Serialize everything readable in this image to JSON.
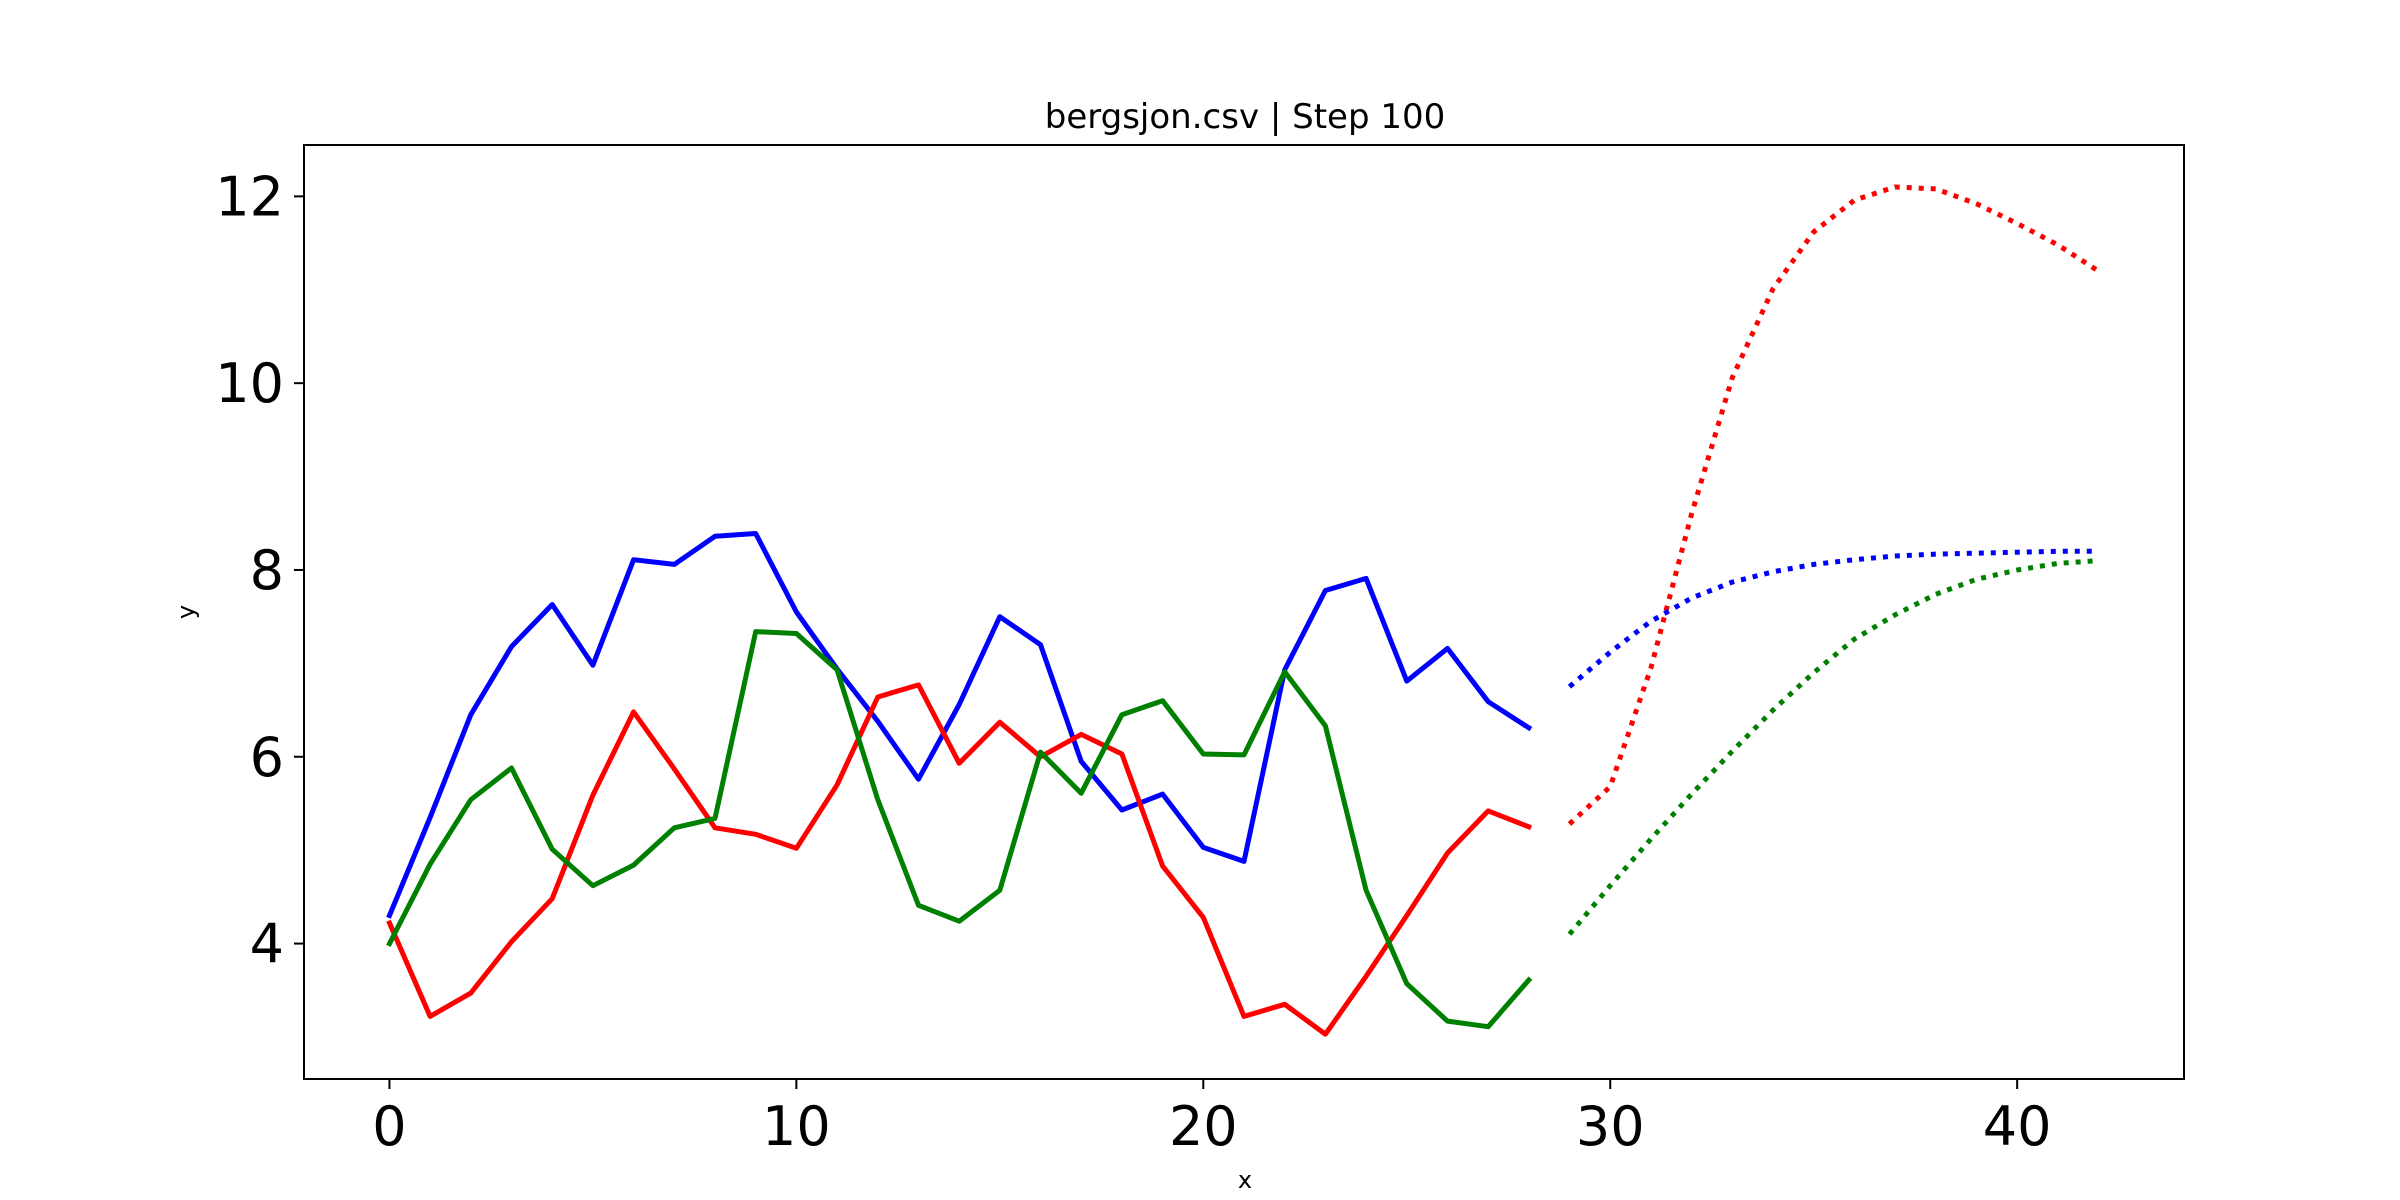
{
  "chart_data": {
    "type": "line",
    "title": "bergsjon.csv | Step 100",
    "xlabel": "x",
    "ylabel": "y",
    "xlim": [
      -2.1,
      44.1
    ],
    "ylim": [
      2.55,
      12.55
    ],
    "x_ticks": [
      0,
      10,
      20,
      30,
      40
    ],
    "y_ticks": [
      4,
      6,
      8,
      10,
      12
    ],
    "grid": false,
    "legend": "none",
    "series": [
      {
        "color": "#0000ff",
        "style": "solid",
        "x": [
          0,
          1,
          2,
          3,
          4,
          5,
          6,
          7,
          8,
          9,
          10,
          11,
          12,
          13,
          14,
          15,
          16,
          17,
          18,
          19,
          20,
          21,
          22,
          23,
          24,
          25,
          26,
          27,
          28
        ],
        "values": [
          4.3,
          5.35,
          6.45,
          7.18,
          7.63,
          6.98,
          8.11,
          8.06,
          8.36,
          8.39,
          7.55,
          6.94,
          6.38,
          5.76,
          6.56,
          7.5,
          7.2,
          5.95,
          5.43,
          5.6,
          5.03,
          4.88,
          6.93,
          7.78,
          7.91,
          6.81,
          7.16,
          6.59,
          6.31
        ]
      },
      {
        "color": "#ff0000",
        "style": "solid",
        "x": [
          0,
          1,
          2,
          3,
          4,
          5,
          6,
          7,
          8,
          9,
          10,
          11,
          12,
          13,
          14,
          15,
          16,
          17,
          18,
          19,
          20,
          21,
          22,
          23,
          24,
          25,
          26,
          27,
          28
        ],
        "values": [
          4.22,
          3.22,
          3.47,
          4.02,
          4.48,
          5.59,
          6.48,
          5.87,
          5.24,
          5.17,
          5.02,
          5.7,
          6.64,
          6.77,
          5.93,
          6.37,
          6.0,
          6.24,
          6.03,
          4.83,
          4.28,
          3.22,
          3.35,
          3.03,
          3.65,
          4.3,
          4.97,
          5.42,
          5.25
        ]
      },
      {
        "color": "#008000",
        "style": "solid",
        "x": [
          0,
          1,
          2,
          3,
          4,
          5,
          6,
          7,
          8,
          9,
          10,
          11,
          12,
          13,
          14,
          15,
          16,
          17,
          18,
          19,
          20,
          21,
          22,
          23,
          24,
          25,
          26,
          27,
          28
        ],
        "values": [
          4.0,
          4.85,
          5.54,
          5.88,
          5.01,
          4.62,
          4.84,
          5.24,
          5.34,
          7.34,
          7.32,
          6.93,
          5.54,
          4.41,
          4.24,
          4.57,
          6.05,
          5.61,
          6.45,
          6.6,
          6.03,
          6.02,
          6.91,
          6.33,
          4.57,
          3.57,
          3.17,
          3.11,
          3.61
        ]
      },
      {
        "color": "#ff0000",
        "style": "dotted",
        "x": [
          29,
          30,
          31,
          32,
          33,
          34,
          35,
          36,
          37,
          38,
          39,
          40,
          41,
          42
        ],
        "values": [
          5.28,
          5.68,
          6.95,
          8.6,
          10.06,
          11.01,
          11.62,
          11.96,
          12.1,
          12.08,
          11.92,
          11.71,
          11.48,
          11.2
        ]
      },
      {
        "color": "#0000ff",
        "style": "dotted",
        "x": [
          29,
          30,
          31,
          32,
          33,
          34,
          35,
          36,
          37,
          38,
          39,
          40,
          41,
          42
        ],
        "values": [
          6.75,
          7.12,
          7.45,
          7.7,
          7.87,
          7.98,
          8.06,
          8.11,
          8.15,
          8.17,
          8.18,
          8.19,
          8.2,
          8.2
        ]
      },
      {
        "color": "#008000",
        "style": "dotted",
        "x": [
          29,
          30,
          31,
          32,
          33,
          34,
          35,
          36,
          37,
          38,
          39,
          40,
          41,
          42
        ],
        "values": [
          4.1,
          4.62,
          5.12,
          5.6,
          6.06,
          6.5,
          6.9,
          7.26,
          7.52,
          7.74,
          7.9,
          8.0,
          8.07,
          8.1
        ]
      }
    ]
  }
}
